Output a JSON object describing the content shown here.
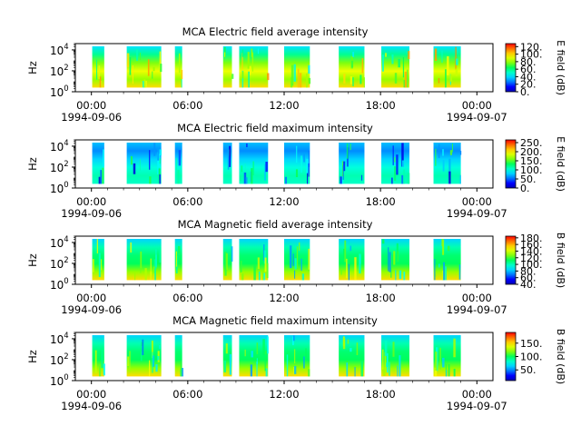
{
  "chart_data": [
    {
      "type": "heatmap",
      "title": "MCA  Electric field average intensity",
      "ylabel": "Hz",
      "y_scale": "log",
      "ylim": [
        1,
        40000
      ],
      "y_ticks": [
        {
          "value": 1,
          "base": "10",
          "exp": "0"
        },
        {
          "value": 100,
          "base": "10",
          "exp": "2"
        },
        {
          "value": 10000,
          "base": "10",
          "exp": "4"
        }
      ],
      "x_ticks": [
        "00:00",
        "06:00",
        "12:00",
        "18:00",
        "00:00"
      ],
      "x_tick_hours": [
        0,
        6,
        12,
        18,
        24
      ],
      "date_start": "1994-09-06",
      "date_end": "1994-09-07",
      "xlim_hours": [
        -1,
        25
      ],
      "colorbar": {
        "label": "E field (dB)",
        "ticks": [
          "0.",
          "20.",
          "40.",
          "60.",
          "80.",
          "100.",
          "120."
        ],
        "tick_values": [
          0,
          20,
          40,
          60,
          80,
          100,
          120
        ],
        "range": [
          0,
          128
        ],
        "colormap": "rainbow"
      },
      "data_intervals_hours": [
        [
          0.05,
          0.8
        ],
        [
          2.2,
          4.35
        ],
        [
          5.2,
          5.65
        ],
        [
          8.2,
          8.75
        ],
        [
          9.2,
          11.0
        ],
        [
          12.0,
          13.6
        ],
        [
          15.4,
          17.0
        ],
        [
          18.05,
          19.8
        ],
        [
          21.3,
          23.0
        ]
      ],
      "typical_level": "medium-high",
      "notes": "Fine high-frequency structure; broadband intensity near 40-100 dB within data intervals"
    },
    {
      "type": "heatmap",
      "title": "MCA  Electric field maximum intensity",
      "ylabel": "Hz",
      "y_scale": "log",
      "ylim": [
        1,
        40000
      ],
      "y_ticks": [
        {
          "value": 1,
          "base": "10",
          "exp": "0"
        },
        {
          "value": 100,
          "base": "10",
          "exp": "2"
        },
        {
          "value": 10000,
          "base": "10",
          "exp": "4"
        }
      ],
      "x_ticks": [
        "00:00",
        "06:00",
        "12:00",
        "18:00",
        "00:00"
      ],
      "x_tick_hours": [
        0,
        6,
        12,
        18,
        24
      ],
      "date_start": "1994-09-06",
      "date_end": "1994-09-07",
      "xlim_hours": [
        -1,
        25
      ],
      "colorbar": {
        "label": "E field (dB)",
        "ticks": [
          "0.",
          "50.",
          "100.",
          "150.",
          "200.",
          "250."
        ],
        "tick_values": [
          0,
          50,
          100,
          150,
          200,
          250
        ],
        "range": [
          0,
          265
        ],
        "colormap": "rainbow"
      },
      "data_intervals_hours": [
        [
          0.05,
          0.8
        ],
        [
          2.2,
          4.35
        ],
        [
          5.2,
          5.65
        ],
        [
          8.2,
          8.75
        ],
        [
          9.2,
          11.0
        ],
        [
          12.0,
          13.6
        ],
        [
          15.4,
          17.0
        ],
        [
          18.05,
          19.8
        ],
        [
          21.3,
          23.0
        ]
      ],
      "typical_level": "low",
      "notes": "Mostly blue-green values around 60-120 dB"
    },
    {
      "type": "heatmap",
      "title": "MCA  Magnetic field average intensity",
      "ylabel": "Hz",
      "y_scale": "log",
      "ylim": [
        1,
        40000
      ],
      "y_ticks": [
        {
          "value": 1,
          "base": "10",
          "exp": "0"
        },
        {
          "value": 100,
          "base": "10",
          "exp": "2"
        },
        {
          "value": 10000,
          "base": "10",
          "exp": "4"
        }
      ],
      "x_ticks": [
        "00:00",
        "06:00",
        "12:00",
        "18:00",
        "00:00"
      ],
      "x_tick_hours": [
        0,
        6,
        12,
        18,
        24
      ],
      "date_start": "1994-09-06",
      "date_end": "1994-09-07",
      "xlim_hours": [
        -1,
        25
      ],
      "colorbar": {
        "label": "B field (dB)",
        "ticks": [
          "40.",
          "60.",
          "80.",
          "100.",
          "120.",
          "140.",
          "160.",
          "180."
        ],
        "tick_values": [
          40,
          60,
          80,
          100,
          120,
          140,
          160,
          180
        ],
        "range": [
          40,
          185
        ],
        "colormap": "rainbow"
      },
      "data_intervals_hours": [
        [
          0.05,
          0.8
        ],
        [
          2.2,
          4.35
        ],
        [
          5.2,
          5.65
        ],
        [
          8.2,
          8.75
        ],
        [
          9.2,
          11.0
        ],
        [
          12.0,
          13.6
        ],
        [
          15.4,
          17.0
        ],
        [
          18.05,
          19.8
        ],
        [
          21.3,
          23.0
        ]
      ],
      "typical_level": "medium",
      "notes": "Cyan at high frequencies, green mid, yellow-orange near 10 Hz"
    },
    {
      "type": "heatmap",
      "title": "MCA  Magnetic field maximum intensity",
      "ylabel": "Hz",
      "y_scale": "log",
      "ylim": [
        1,
        40000
      ],
      "y_ticks": [
        {
          "value": 1,
          "base": "10",
          "exp": "0"
        },
        {
          "value": 100,
          "base": "10",
          "exp": "2"
        },
        {
          "value": 10000,
          "base": "10",
          "exp": "4"
        }
      ],
      "x_ticks": [
        "00:00",
        "06:00",
        "12:00",
        "18:00",
        "00:00"
      ],
      "x_tick_hours": [
        0,
        6,
        12,
        18,
        24
      ],
      "date_start": "1994-09-06",
      "date_end": "1994-09-07",
      "xlim_hours": [
        -1,
        25
      ],
      "colorbar": {
        "label": "B field (dB)",
        "ticks": [
          "50.",
          "100.",
          "150."
        ],
        "tick_values": [
          50,
          100,
          150
        ],
        "range": [
          10,
          190
        ],
        "colormap": "rainbow"
      },
      "data_intervals_hours": [
        [
          0.05,
          0.8
        ],
        [
          2.2,
          4.35
        ],
        [
          5.2,
          5.65
        ],
        [
          8.2,
          8.75
        ],
        [
          9.2,
          11.0
        ],
        [
          12.0,
          13.6
        ],
        [
          15.4,
          17.0
        ],
        [
          18.05,
          19.8
        ],
        [
          21.3,
          23.0
        ]
      ],
      "typical_level": "medium",
      "notes": "Green dominant, yellow-orange at lower frequencies"
    }
  ]
}
